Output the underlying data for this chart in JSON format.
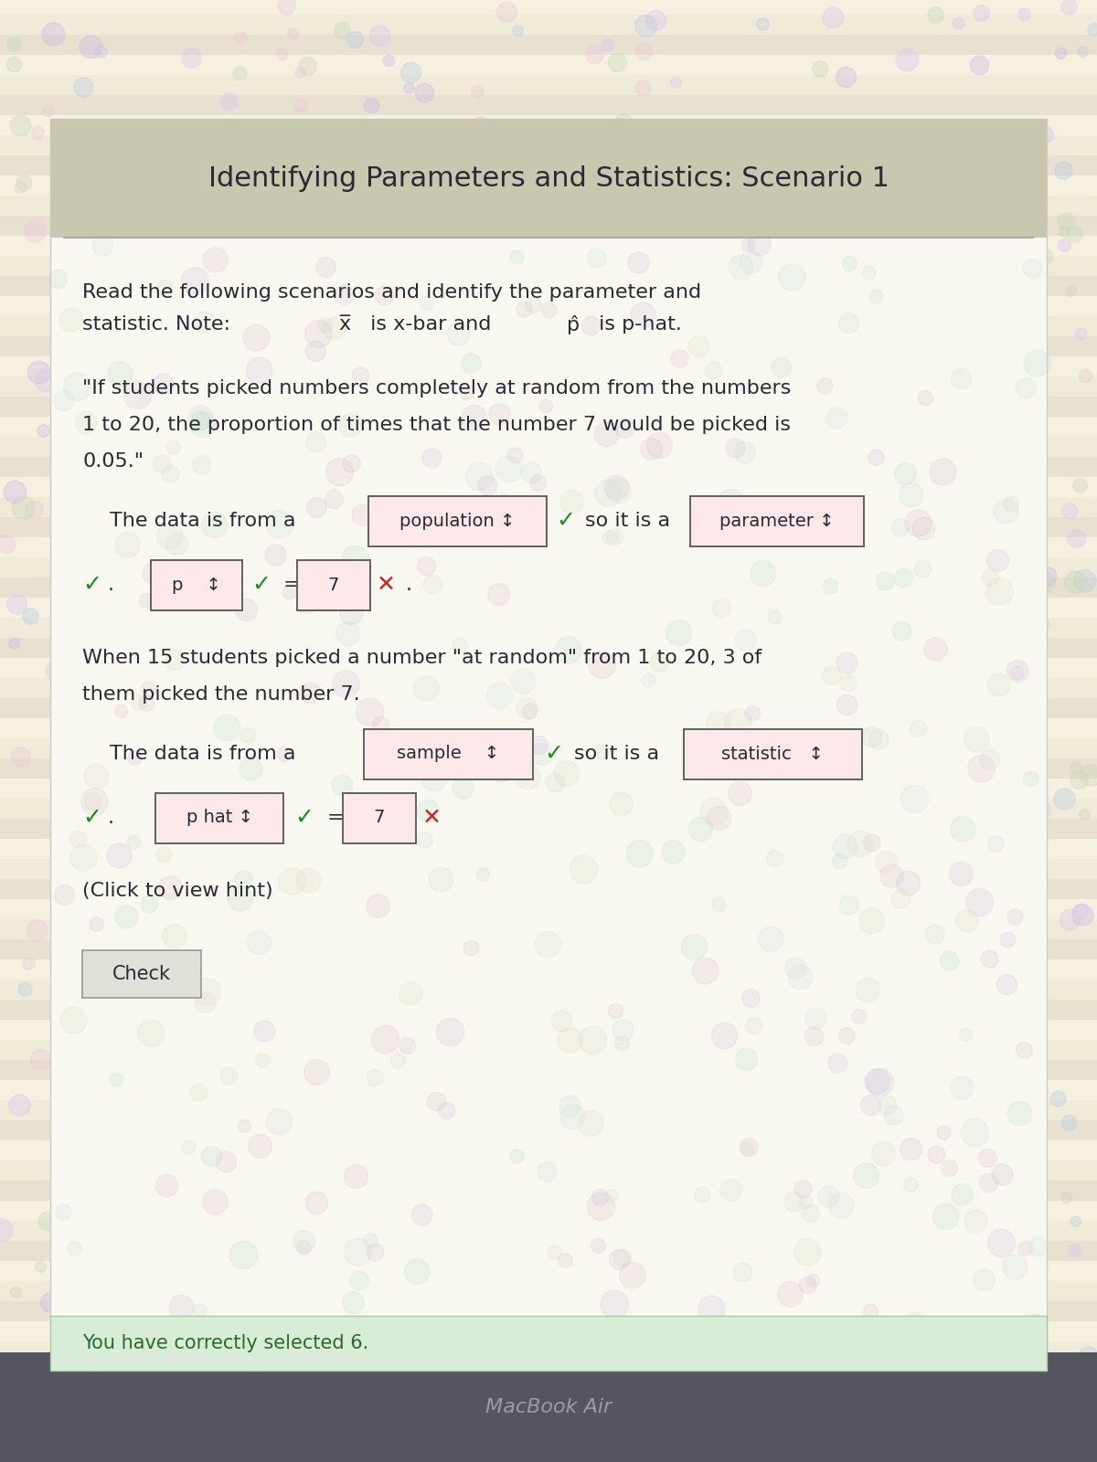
{
  "title": "Identifying Parameters and Statistics: Scenario 1",
  "text_color": "#2a2a35",
  "intro_line1": "Read the following scenarios and identify the parameter and",
  "intro_line2": "statistic. Note: ",
  "intro_line2b": " is x-bar and ",
  "intro_line2c": " is p-hat.",
  "scenario1_line1": "\"If students picked numbers completely at random from the numbers",
  "scenario1_line2": "1 to 20, the proportion of times that the number 7 would be picked is",
  "scenario1_line3": "0.05.\"",
  "row1_prefix": "The data is from a",
  "row1_box1": "population ↕",
  "row1_box2": "parameter ↕",
  "row2_box1": "p    ↕",
  "row2_box2": "7",
  "scenario2_line1": "When 15 students picked a number \"at random\" from 1 to 20, 3 of",
  "scenario2_line2": "them picked the number 7.",
  "row3_prefix": "The data is from a",
  "row3_box1": "sample    ↕",
  "row3_box2": "statistic   ↕",
  "row4_box1": "p hat ↕",
  "row4_box2": "7",
  "hint_text": "(Click to view hint)",
  "check_button": "Check",
  "success_text": "You have correctly selected 6.",
  "macbook_text": "MacBook Air",
  "check_color": "#1a8a1a",
  "x_color": "#cc2222",
  "box_border": "#555555",
  "box_bg": "#fce8e8",
  "success_bg": "#d8ecd8",
  "success_text_color": "#2a6a2a",
  "bottom_bg": "#555560",
  "title_area_bg": "#c0c0a8",
  "content_bg": "#f0efe8"
}
